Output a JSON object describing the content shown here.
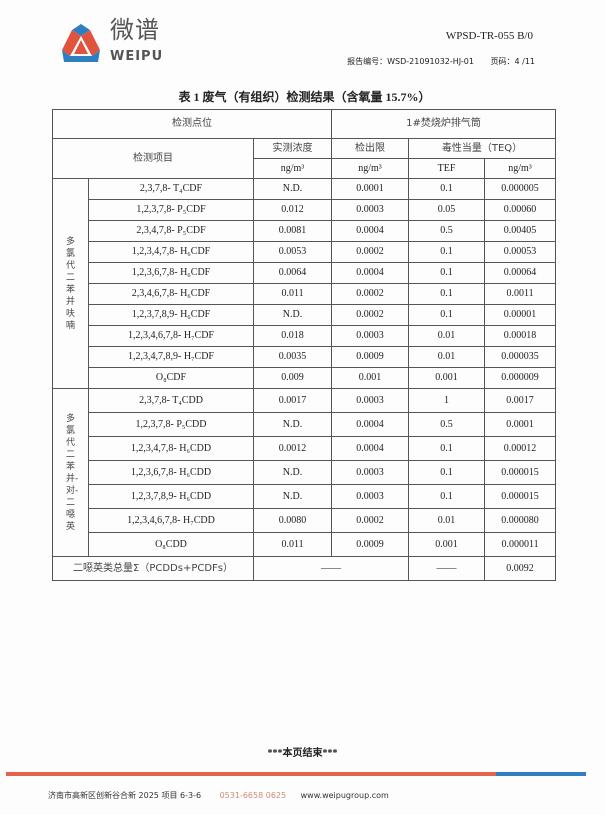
{
  "header": {
    "brand_cn": "微谱",
    "brand_en": "WEIPU",
    "doc_code": "WPSD-TR-055 B/0",
    "report_label": "报告编号：",
    "report_no": "WSD-21091032-HJ-01",
    "page_label": "页码：",
    "page_no": "4 /11"
  },
  "colors": {
    "brand_red": "#e0533c",
    "brand_blue": "#2d7fc1"
  },
  "table": {
    "title": "表 1 废气（有组织）检测结果（含氧量 15.7%）",
    "location_label": "检测点位",
    "location_value": "1#焚烧炉排气筒",
    "item_label": "检测项目",
    "conc_label": "实测浓度",
    "limit_label": "检出限",
    "teq_label": "毒性当量（TEQ）",
    "unit": "ng/m³",
    "tef_label": "TEF",
    "groups": [
      {
        "name": "多氯代二苯并呋喃",
        "rows": [
          [
            "2,3,7,8- T₄CDF",
            "N.D.",
            "0.0001",
            "0.1",
            "0.000005"
          ],
          [
            "1,2,3,7,8- P₅CDF",
            "0.012",
            "0.0003",
            "0.05",
            "0.00060"
          ],
          [
            "2,3,4,7,8- P₅CDF",
            "0.0081",
            "0.0004",
            "0.5",
            "0.00405"
          ],
          [
            "1,2,3,4,7,8- H₆CDF",
            "0.0053",
            "0.0002",
            "0.1",
            "0.00053"
          ],
          [
            "1,2,3,6,7,8- H₆CDF",
            "0.0064",
            "0.0004",
            "0.1",
            "0.00064"
          ],
          [
            "2,3,4,6,7,8- H₆CDF",
            "0.011",
            "0.0002",
            "0.1",
            "0.0011"
          ],
          [
            "1,2,3,7,8,9- H₆CDF",
            "N.D.",
            "0.0002",
            "0.1",
            "0.00001"
          ],
          [
            "1,2,3,4,6,7,8- H₇CDF",
            "0.018",
            "0.0003",
            "0.01",
            "0.00018"
          ],
          [
            "1,2,3,4,7,8,9- H₇CDF",
            "0.0035",
            "0.0009",
            "0.01",
            "0.000035"
          ],
          [
            "O₈CDF",
            "0.009",
            "0.001",
            "0.001",
            "0.000009"
          ]
        ]
      },
      {
        "name": "多氯代二苯并-对-二噁英",
        "rows": [
          [
            "2,3,7,8- T₄CDD",
            "0.0017",
            "0.0003",
            "1",
            "0.0017"
          ],
          [
            "1,2,3,7,8- P₅CDD",
            "N.D.",
            "0.0004",
            "0.5",
            "0.0001"
          ],
          [
            "1,2,3,4,7,8- H₆CDD",
            "0.0012",
            "0.0004",
            "0.1",
            "0.00012"
          ],
          [
            "1,2,3,6,7,8- H₆CDD",
            "N.D.",
            "0.0003",
            "0.1",
            "0.000015"
          ],
          [
            "1,2,3,7,8,9- H₆CDD",
            "N.D.",
            "0.0003",
            "0.1",
            "0.000015"
          ],
          [
            "1,2,3,4,6,7,8- H₇CDD",
            "0.0080",
            "0.0002",
            "0.01",
            "0.000080"
          ],
          [
            "O₈CDD",
            "0.011",
            "0.0009",
            "0.001",
            "0.000011"
          ]
        ]
      }
    ],
    "total": {
      "label": "二噁英类总量Σ（PCDDs+PCDFs）",
      "conc": "——",
      "tef": "——",
      "teq": "0.0092"
    }
  },
  "page_end": "***本页结束***",
  "footer": {
    "address": "济南市高新区创新谷合新 2025 项目 6-3-6",
    "phone": "0531-6658 0625",
    "website": "www.weipugroup.com"
  }
}
